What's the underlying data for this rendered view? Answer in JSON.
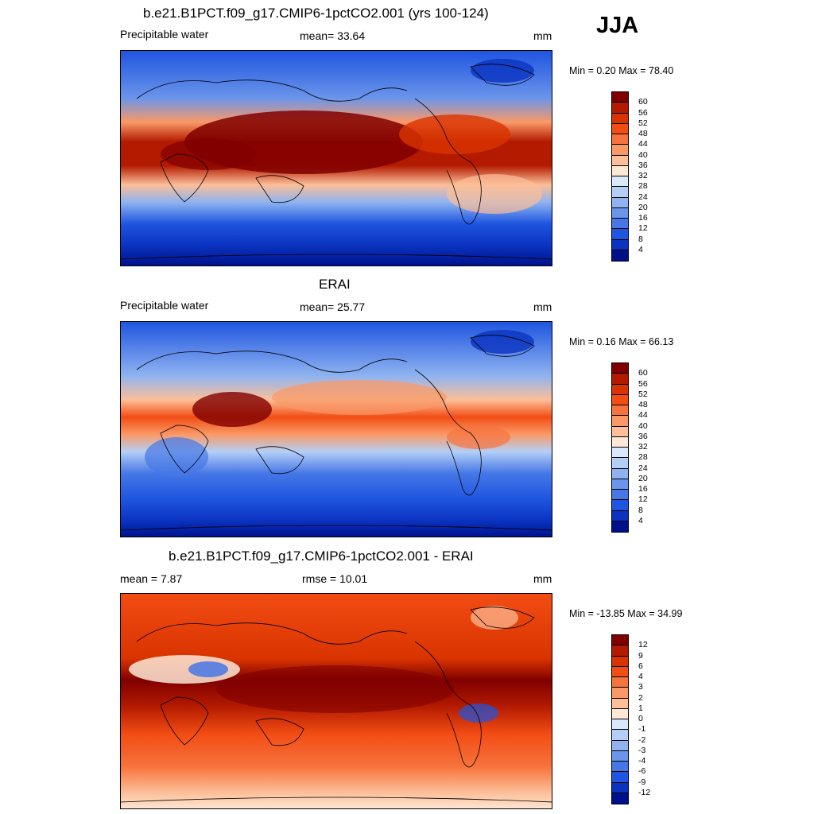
{
  "season": "JJA",
  "panels": [
    {
      "title": "b.e21.B1PCT.f09_g17.CMIP6-1pctCO2.001 (yrs 100-124)",
      "left_label": "Precipitable water",
      "center_label": "mean=  33.64",
      "units": "mm",
      "minmax": "Min =   0.20 Max =  78.40",
      "colorbar": {
        "colors": [
          "#800000",
          "#b31a00",
          "#d93300",
          "#f24d14",
          "#f7733d",
          "#fa9966",
          "#fcbf99",
          "#fde8d6",
          "#d9e8fb",
          "#b3cff6",
          "#8fb3f0",
          "#6b95ea",
          "#4677e6",
          "#1f55e0",
          "#0a33c0",
          "#00108a"
        ],
        "ticks": [
          "60",
          "56",
          "52",
          "48",
          "44",
          "40",
          "36",
          "32",
          "28",
          "24",
          "20",
          "16",
          "12",
          "8",
          "4"
        ]
      }
    },
    {
      "title": "ERAI",
      "left_label": "Precipitable water",
      "center_label": "mean=  25.77",
      "units": "mm",
      "minmax": "Min =   0.16 Max =  66.13",
      "colorbar": {
        "colors": [
          "#800000",
          "#b31a00",
          "#d93300",
          "#f24d14",
          "#f7733d",
          "#fa9966",
          "#fcbf99",
          "#fde8d6",
          "#d9e8fb",
          "#b3cff6",
          "#8fb3f0",
          "#6b95ea",
          "#4677e6",
          "#1f55e0",
          "#0a33c0",
          "#00108a"
        ],
        "ticks": [
          "60",
          "56",
          "52",
          "48",
          "44",
          "40",
          "36",
          "32",
          "28",
          "24",
          "20",
          "16",
          "12",
          "8",
          "4"
        ]
      }
    },
    {
      "title": "b.e21.B1PCT.f09_g17.CMIP6-1pctCO2.001 - ERAI",
      "left_label": "mean =   7.87",
      "center_label": "rmse =  10.01",
      "units": "mm",
      "minmax": "Min = -13.85 Max =  34.99",
      "colorbar": {
        "colors": [
          "#800000",
          "#b31a00",
          "#d93300",
          "#f24d14",
          "#f7733d",
          "#fa9966",
          "#fcbf99",
          "#fde8d6",
          "#d9e8fb",
          "#b3cff6",
          "#8fb3f0",
          "#6b95ea",
          "#4677e6",
          "#1f55e0",
          "#0a33c0",
          "#00108a"
        ],
        "ticks": [
          "12",
          "9",
          "6",
          "4",
          "3",
          "2",
          "1",
          "0",
          "-1",
          "-2",
          "-3",
          "-4",
          "-6",
          "-9",
          "-12"
        ]
      }
    }
  ]
}
